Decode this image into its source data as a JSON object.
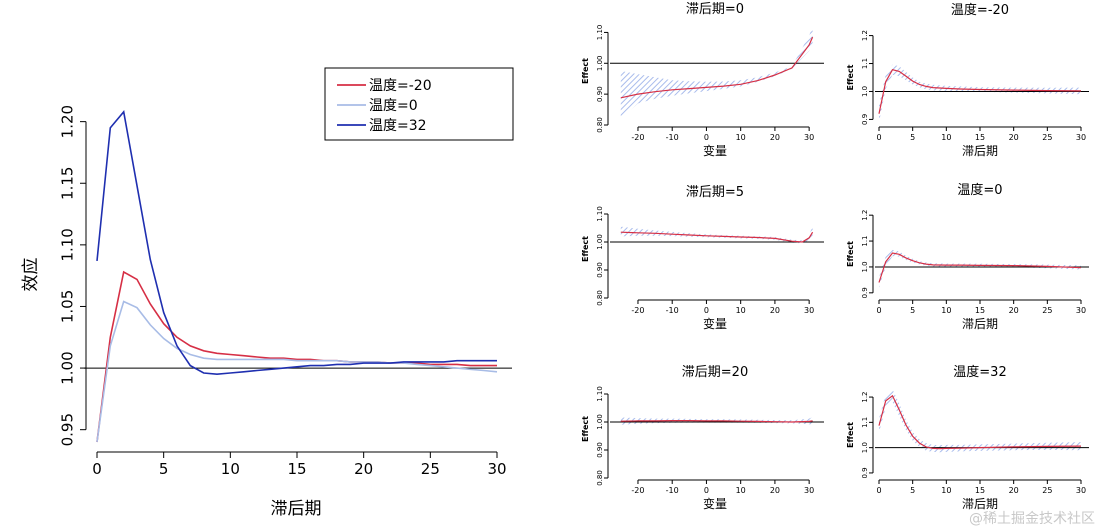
{
  "watermark": "@稀土掘金技术社区",
  "chart_data": [
    {
      "type": "line",
      "xlabel": "滞后期",
      "ylabel": "效应",
      "xlim": [
        0,
        30
      ],
      "ylim": [
        0.94,
        1.22
      ],
      "xticks": [
        0,
        5,
        10,
        15,
        20,
        25,
        30
      ],
      "yticks": [
        0.95,
        1.0,
        1.05,
        1.1,
        1.15,
        1.2
      ],
      "reference_line": 1.0,
      "legend_position": "top-right",
      "x": [
        0,
        1,
        2,
        3,
        4,
        5,
        6,
        7,
        8,
        9,
        10,
        11,
        12,
        13,
        14,
        15,
        16,
        17,
        18,
        19,
        20,
        21,
        22,
        23,
        24,
        25,
        26,
        27,
        28,
        29,
        30
      ],
      "series": [
        {
          "name": "温度=-20",
          "color": "#d62f45",
          "values": [
            0.94,
            1.025,
            1.078,
            1.072,
            1.052,
            1.036,
            1.025,
            1.018,
            1.014,
            1.012,
            1.011,
            1.01,
            1.009,
            1.008,
            1.008,
            1.007,
            1.007,
            1.006,
            1.006,
            1.005,
            1.005,
            1.005,
            1.004,
            1.004,
            1.004,
            1.003,
            1.003,
            1.003,
            1.002,
            1.002,
            1.002
          ]
        },
        {
          "name": "温度=0",
          "color": "#a8bce6",
          "values": [
            0.94,
            1.018,
            1.054,
            1.049,
            1.035,
            1.024,
            1.016,
            1.011,
            1.008,
            1.007,
            1.007,
            1.007,
            1.007,
            1.007,
            1.007,
            1.006,
            1.006,
            1.006,
            1.006,
            1.005,
            1.005,
            1.005,
            1.004,
            1.004,
            1.003,
            1.002,
            1.001,
            1.0,
            0.999,
            0.998,
            0.997
          ]
        },
        {
          "name": "温度=32",
          "color": "#1f2fb0",
          "values": [
            1.087,
            1.195,
            1.208,
            1.148,
            1.088,
            1.045,
            1.018,
            1.002,
            0.996,
            0.995,
            0.996,
            0.997,
            0.998,
            0.999,
            1.0,
            1.001,
            1.002,
            1.002,
            1.003,
            1.003,
            1.004,
            1.004,
            1.004,
            1.005,
            1.005,
            1.005,
            1.005,
            1.006,
            1.006,
            1.006,
            1.006
          ]
        }
      ]
    },
    {
      "type": "line",
      "title": "滞后期=0",
      "xlabel": "变量",
      "ylabel": "Effect",
      "xlim": [
        -27,
        32
      ],
      "ylim": [
        0.8,
        1.15
      ],
      "xticks": [
        -20,
        -10,
        0,
        10,
        20,
        30
      ],
      "yticks": [
        0.8,
        0.9,
        1.0,
        1.1
      ],
      "reference_line": 1.0,
      "x": [
        -25,
        -20,
        -15,
        -10,
        -5,
        0,
        5,
        10,
        15,
        20,
        25,
        30,
        31
      ],
      "values": [
        0.888,
        0.9,
        0.908,
        0.914,
        0.918,
        0.922,
        0.926,
        0.932,
        0.944,
        0.962,
        0.985,
        1.06,
        1.085
      ],
      "ci_lower": [
        0.82,
        0.87,
        0.885,
        0.895,
        0.903,
        0.91,
        0.917,
        0.925,
        0.94,
        0.958,
        0.982,
        1.04,
        1.06
      ],
      "ci_upper": [
        0.975,
        0.965,
        0.955,
        0.945,
        0.942,
        0.94,
        0.941,
        0.945,
        0.955,
        0.97,
        0.99,
        1.09,
        1.12
      ]
    },
    {
      "type": "line",
      "title": "温度=-20",
      "xlabel": "滞后期",
      "ylabel": "Effect",
      "xlim": [
        0,
        30
      ],
      "ylim": [
        0.88,
        1.22
      ],
      "xticks": [
        0,
        5,
        10,
        15,
        20,
        25,
        30
      ],
      "yticks": [
        0.9,
        1.0,
        1.1,
        1.2
      ],
      "reference_line": 1.0,
      "x": [
        0,
        1,
        2,
        3,
        4,
        5,
        6,
        7,
        8,
        10,
        12,
        15,
        20,
        25,
        30
      ],
      "values": [
        0.92,
        1.035,
        1.078,
        1.072,
        1.055,
        1.037,
        1.025,
        1.018,
        1.014,
        1.011,
        1.009,
        1.007,
        1.005,
        1.003,
        1.002
      ],
      "ci_lower": [
        0.89,
        1.01,
        1.06,
        1.055,
        1.04,
        1.025,
        1.015,
        1.008,
        1.004,
        1.002,
        1.0,
        0.999,
        0.996,
        0.993,
        0.99
      ],
      "ci_upper": [
        0.95,
        1.06,
        1.096,
        1.09,
        1.07,
        1.05,
        1.035,
        1.028,
        1.024,
        1.02,
        1.018,
        1.015,
        1.014,
        1.013,
        1.014
      ]
    },
    {
      "type": "line",
      "title": "滞后期=5",
      "xlabel": "变量",
      "ylabel": "Effect",
      "xlim": [
        -27,
        32
      ],
      "ylim": [
        0.8,
        1.15
      ],
      "xticks": [
        -20,
        -10,
        0,
        10,
        20,
        30
      ],
      "yticks": [
        0.8,
        0.9,
        1.0,
        1.1
      ],
      "reference_line": 1.0,
      "x": [
        -25,
        -20,
        -15,
        -10,
        -5,
        0,
        5,
        10,
        15,
        20,
        25,
        28,
        30,
        31
      ],
      "values": [
        1.035,
        1.033,
        1.031,
        1.028,
        1.025,
        1.022,
        1.02,
        1.018,
        1.016,
        1.013,
        1.003,
        1.0,
        1.015,
        1.035
      ],
      "ci_lower": [
        1.02,
        1.022,
        1.022,
        1.021,
        1.019,
        1.017,
        1.015,
        1.013,
        1.011,
        1.008,
        0.998,
        0.995,
        1.005,
        1.02
      ],
      "ci_upper": [
        1.055,
        1.047,
        1.041,
        1.036,
        1.031,
        1.027,
        1.024,
        1.022,
        1.02,
        1.018,
        1.008,
        1.006,
        1.028,
        1.055
      ]
    },
    {
      "type": "line",
      "title": "温度=0",
      "xlabel": "滞后期",
      "ylabel": "Effect",
      "xlim": [
        0,
        30
      ],
      "ylim": [
        0.88,
        1.22
      ],
      "xticks": [
        0,
        5,
        10,
        15,
        20,
        25,
        30
      ],
      "yticks": [
        0.9,
        1.0,
        1.1,
        1.2
      ],
      "reference_line": 1.0,
      "x": [
        0,
        1,
        2,
        3,
        4,
        5,
        6,
        7,
        8,
        10,
        12,
        15,
        20,
        25,
        30
      ],
      "values": [
        0.94,
        1.02,
        1.054,
        1.049,
        1.035,
        1.024,
        1.016,
        1.011,
        1.008,
        1.007,
        1.007,
        1.006,
        1.005,
        1.002,
        0.997
      ],
      "ci_lower": [
        0.92,
        1.0,
        1.042,
        1.04,
        1.027,
        1.017,
        1.01,
        1.005,
        1.002,
        1.001,
        1.001,
        1.0,
        0.999,
        0.995,
        0.99
      ],
      "ci_upper": [
        0.96,
        1.04,
        1.066,
        1.06,
        1.044,
        1.032,
        1.022,
        1.017,
        1.014,
        1.013,
        1.013,
        1.012,
        1.011,
        1.009,
        1.006
      ]
    },
    {
      "type": "line",
      "title": "滞后期=20",
      "xlabel": "变量",
      "ylabel": "Effect",
      "xlim": [
        -27,
        32
      ],
      "ylim": [
        0.8,
        1.15
      ],
      "xticks": [
        -20,
        -10,
        0,
        10,
        20,
        30
      ],
      "yticks": [
        0.8,
        0.9,
        1.0,
        1.1
      ],
      "reference_line": 1.0,
      "x": [
        -25,
        -20,
        -15,
        -10,
        -5,
        0,
        5,
        10,
        15,
        20,
        25,
        30,
        31
      ],
      "values": [
        1.003,
        1.004,
        1.004,
        1.005,
        1.005,
        1.004,
        1.004,
        1.003,
        1.002,
        1.001,
        1.0,
        1.002,
        1.004
      ],
      "ci_lower": [
        0.99,
        0.994,
        0.996,
        0.997,
        0.998,
        0.998,
        0.998,
        0.998,
        0.997,
        0.996,
        0.995,
        0.992,
        0.99
      ],
      "ci_upper": [
        1.016,
        1.014,
        1.012,
        1.012,
        1.011,
        1.01,
        1.01,
        1.009,
        1.008,
        1.007,
        1.006,
        1.012,
        1.018
      ]
    },
    {
      "type": "line",
      "title": "温度=32",
      "xlabel": "滞后期",
      "ylabel": "Effect",
      "xlim": [
        0,
        30
      ],
      "ylim": [
        0.88,
        1.22
      ],
      "xticks": [
        0,
        5,
        10,
        15,
        20,
        25,
        30
      ],
      "yticks": [
        0.9,
        1.0,
        1.1,
        1.2
      ],
      "reference_line": 1.0,
      "x": [
        0,
        1,
        2,
        3,
        4,
        5,
        6,
        7,
        8,
        9,
        10,
        12,
        15,
        20,
        25,
        30
      ],
      "values": [
        1.087,
        1.185,
        1.205,
        1.15,
        1.09,
        1.045,
        1.018,
        1.003,
        0.997,
        0.996,
        0.997,
        0.998,
        1.0,
        1.003,
        1.005,
        1.006
      ],
      "ci_lower": [
        1.06,
        1.16,
        1.18,
        1.125,
        1.07,
        1.028,
        1.003,
        0.988,
        0.983,
        0.982,
        0.983,
        0.985,
        0.987,
        0.99,
        0.991,
        0.99
      ],
      "ci_upper": [
        1.115,
        1.21,
        1.23,
        1.175,
        1.11,
        1.062,
        1.033,
        1.018,
        1.011,
        1.01,
        1.011,
        1.011,
        1.013,
        1.016,
        1.019,
        1.022
      ]
    }
  ]
}
